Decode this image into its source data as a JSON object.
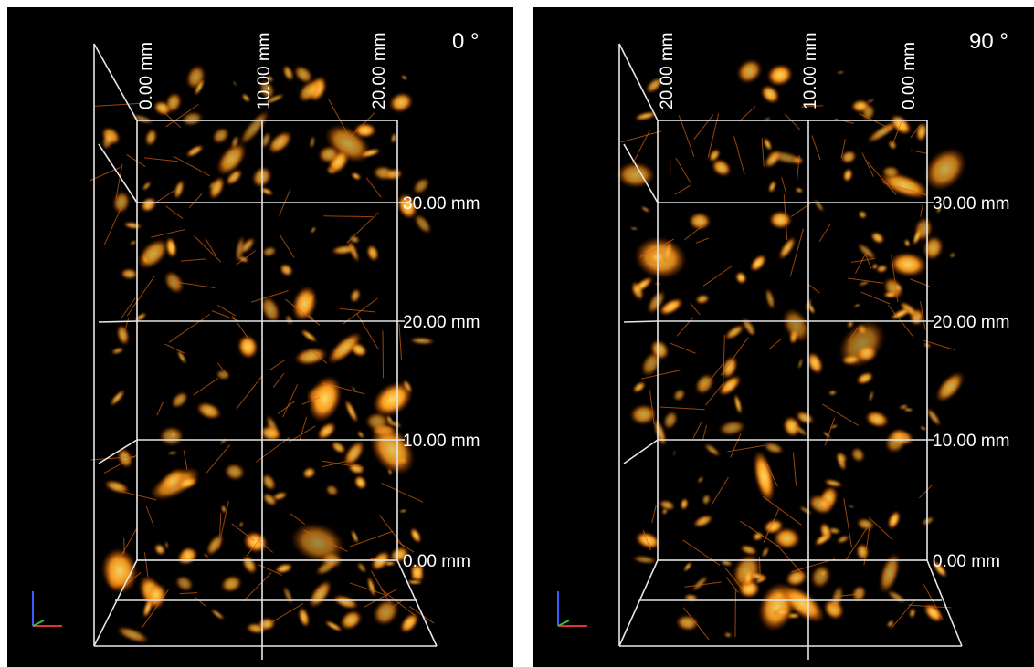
{
  "panels": [
    {
      "angle": "0 °",
      "top_labels": [
        "0.00 mm",
        "10.00 mm",
        "20.00 mm"
      ],
      "right_labels": [
        "30.00 mm",
        "20.00 mm",
        "10.00 mm",
        "0.00 mm"
      ]
    },
    {
      "angle": "90 °",
      "top_labels": [
        "20.00 mm",
        "10.00 mm",
        "0.00 mm"
      ],
      "right_labels": [
        "30.00 mm",
        "20.00 mm",
        "10.00 mm",
        "0.00 mm"
      ]
    }
  ]
}
